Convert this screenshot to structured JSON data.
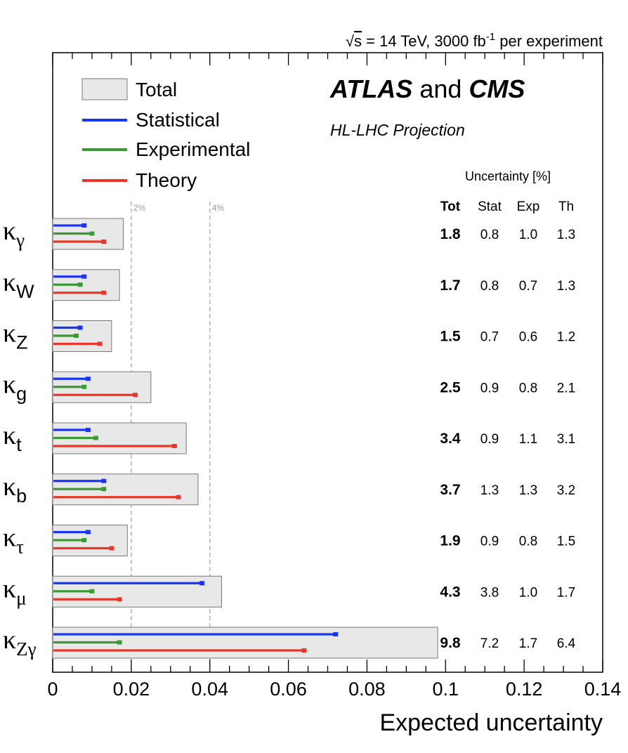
{
  "chart_data": {
    "type": "bar",
    "orientation": "horizontal",
    "header_text": "√s = 14 TeV, 3000 fb⁻¹ per experiment",
    "header_parts": {
      "sqrt": "√",
      "s": "s",
      "eq": " = 14 TeV, 3000 fb",
      "sup": "-1",
      "tail": " per experiment"
    },
    "experiment": {
      "atlas": "ATLAS",
      "and": "and",
      "cms": "CMS"
    },
    "subtitle": "HL-LHC Projection",
    "xlabel": "Expected uncertainty",
    "xlim": [
      0,
      0.14
    ],
    "xticks": [
      "0",
      "0.02",
      "0.04",
      "0.06",
      "0.08",
      "0.1",
      "0.12",
      "0.14"
    ],
    "reference_lines": [
      {
        "value": 0.02,
        "label": "2%"
      },
      {
        "value": 0.04,
        "label": "4%"
      }
    ],
    "legend": [
      {
        "key": "total",
        "label": "Total",
        "color": "#e8e8e8"
      },
      {
        "key": "stat",
        "label": "Statistical",
        "color": "#1a34f5"
      },
      {
        "key": "exp",
        "label": "Experimental",
        "color": "#3a9b35"
      },
      {
        "key": "th",
        "label": "Theory",
        "color": "#e8372a"
      }
    ],
    "table_header": "Uncertainty [%]",
    "table_columns": [
      "Tot",
      "Stat",
      "Exp",
      "Th"
    ],
    "categories": [
      {
        "base": "κ",
        "sub": "γ"
      },
      {
        "base": "κ",
        "sub": "W"
      },
      {
        "base": "κ",
        "sub": "Z"
      },
      {
        "base": "κ",
        "sub": "g"
      },
      {
        "base": "κ",
        "sub": "t"
      },
      {
        "base": "κ",
        "sub": "b"
      },
      {
        "base": "κ",
        "sub": "τ"
      },
      {
        "base": "κ",
        "sub": "μ"
      },
      {
        "base": "κ",
        "sub": "Zγ"
      }
    ],
    "series": [
      {
        "name": "Total",
        "values": [
          0.018,
          0.017,
          0.015,
          0.025,
          0.034,
          0.037,
          0.019,
          0.043,
          0.098
        ]
      },
      {
        "name": "Statistical",
        "values": [
          0.008,
          0.008,
          0.007,
          0.009,
          0.009,
          0.013,
          0.009,
          0.038,
          0.072
        ]
      },
      {
        "name": "Experimental",
        "values": [
          0.01,
          0.007,
          0.006,
          0.008,
          0.011,
          0.013,
          0.008,
          0.01,
          0.017
        ]
      },
      {
        "name": "Theory",
        "values": [
          0.013,
          0.013,
          0.012,
          0.021,
          0.031,
          0.032,
          0.015,
          0.017,
          0.064
        ]
      }
    ],
    "table_rows": [
      [
        "1.8",
        "0.8",
        "1.0",
        "1.3"
      ],
      [
        "1.7",
        "0.8",
        "0.7",
        "1.3"
      ],
      [
        "1.5",
        "0.7",
        "0.6",
        "1.2"
      ],
      [
        "2.5",
        "0.9",
        "0.8",
        "2.1"
      ],
      [
        "3.4",
        "0.9",
        "1.1",
        "3.1"
      ],
      [
        "3.7",
        "1.3",
        "1.3",
        "3.2"
      ],
      [
        "1.9",
        "0.9",
        "0.8",
        "1.5"
      ],
      [
        "4.3",
        "3.8",
        "1.0",
        "1.7"
      ],
      [
        "9.8",
        "7.2",
        "1.7",
        "6.4"
      ]
    ],
    "grid": false
  }
}
